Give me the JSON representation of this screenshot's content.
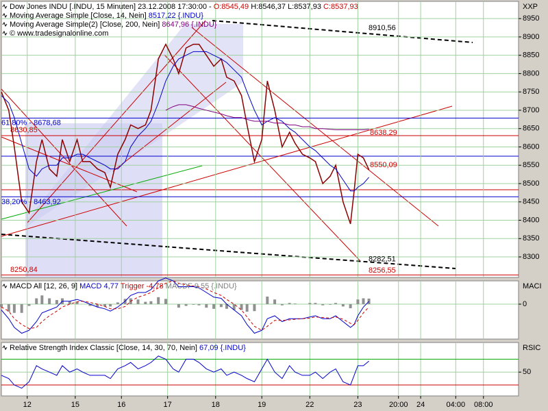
{
  "chart_data": [
    {
      "type": "line",
      "legend_texts": [
        [
          {
            "text": "Dow Jones INDU [.INDU, 15 Minuten] 23.12.2008 17:30:00 - ",
            "color": "#000000"
          },
          {
            "text": "O:8545,49",
            "color": "#cc0000"
          },
          {
            "text": " H:8546,37 L:8537,93 ",
            "color": "#000000"
          },
          {
            "text": "C:8537,93",
            "color": "#cc0000"
          }
        ],
        [
          {
            "text": "Moving Average Simple [Close, 14, Nein] ",
            "color": "#000000"
          },
          {
            "text": "8517,22 {.INDU}",
            "color": "#0000cc"
          }
        ],
        [
          {
            "text": "Moving Average Simple(2) [Close, 200, Nein] ",
            "color": "#000000"
          },
          {
            "text": "8647,96 {.INDU}",
            "color": "#800080"
          }
        ],
        [
          {
            "text": "© www.tradesignalonline.com",
            "color": "#000000"
          }
        ]
      ],
      "axis_label": "XXP",
      "xlim": [
        0,
        280
      ],
      "ylim": [
        8244,
        8997
      ],
      "yticks": [
        8300,
        8350,
        8400,
        8450,
        8500,
        8550,
        8600,
        8650,
        8700,
        8750,
        8800,
        8850,
        8900,
        8950
      ],
      "grid": true,
      "x": [
        0,
        4,
        7,
        11,
        15,
        19,
        22,
        26,
        30,
        33,
        37,
        41,
        44,
        48,
        52,
        56,
        59,
        63,
        67,
        70,
        74,
        78,
        81,
        85,
        89,
        93,
        96,
        100,
        104,
        107,
        111,
        115,
        119,
        122,
        126,
        130,
        133,
        137,
        141,
        144,
        148,
        152,
        156,
        159,
        163,
        167,
        170,
        174,
        178,
        181,
        185,
        189,
        191,
        193,
        196,
        199
      ],
      "series": [
        {
          "name": "Close",
          "color": "#8b0000",
          "kind": "line",
          "values": [
            8750,
            8700,
            8600,
            8450,
            8420,
            8560,
            8620,
            8540,
            8520,
            8620,
            8560,
            8620,
            8560,
            8560,
            8540,
            8530,
            8490,
            8580,
            8620,
            8660,
            8650,
            8660,
            8700,
            8840,
            8880,
            8840,
            8800,
            8870,
            8880,
            8880,
            8850,
            8820,
            8840,
            8790,
            8780,
            8740,
            8660,
            8560,
            8620,
            8780,
            8700,
            8600,
            8640,
            8610,
            8580,
            8570,
            8560,
            8500,
            8520,
            8550,
            8450,
            8390,
            8480,
            8580,
            8570,
            8537.93
          ]
        },
        {
          "name": "Moving Average Simple [Close, 14, Nein]",
          "color": "#0000cc",
          "kind": "line",
          "values": [
            8740,
            8720,
            8680,
            8610,
            8540,
            8520,
            8540,
            8550,
            8550,
            8570,
            8570,
            8580,
            8580,
            8570,
            8560,
            8550,
            8540,
            8540,
            8560,
            8600,
            8630,
            8650,
            8670,
            8720,
            8780,
            8820,
            8840,
            8850,
            8860,
            8860,
            8860,
            8850,
            8840,
            8830,
            8810,
            8790,
            8750,
            8700,
            8660,
            8670,
            8680,
            8670,
            8650,
            8640,
            8620,
            8600,
            8590,
            8570,
            8550,
            8540,
            8510,
            8480,
            8480,
            8490,
            8500,
            8517.22
          ]
        },
        {
          "name": "Moving Average Simple(2) [Close, 200, Nein]",
          "color": "#800080",
          "kind": "line",
          "values": [
            null,
            null,
            null,
            null,
            null,
            null,
            null,
            null,
            null,
            null,
            null,
            null,
            null,
            null,
            null,
            null,
            null,
            null,
            null,
            null,
            null,
            null,
            null,
            null,
            8700,
            8710,
            8715,
            8715,
            8710,
            8705,
            8700,
            8695,
            8690,
            8685,
            8680,
            8680,
            8675,
            8670,
            8670,
            8670,
            8665,
            8665,
            8660,
            8660,
            8655,
            8655,
            8650,
            8650,
            8648,
            8647,
            8647,
            8647,
            8647,
            8647,
            8647,
            8647.96
          ]
        }
      ],
      "annotations": [
        {
          "text": "8910,56",
          "value": 8910.56,
          "color": "#000000",
          "line": false
        },
        {
          "text": "8638,29",
          "value": 8638.29,
          "color": "#cc0000",
          "line": false
        },
        {
          "text": "8550,09",
          "value": 8550.09,
          "color": "#cc0000",
          "line": false
        },
        {
          "text": "8282,51",
          "value": 8282.51,
          "color": "#000000",
          "line": false
        },
        {
          "text": "8256,55",
          "value": 8256.55,
          "color": "#cc0000",
          "line": false
        },
        {
          "text": "8250,84",
          "value": 8250.84,
          "color": "#cc0000",
          "line": true
        },
        {
          "text": "8630,85",
          "value": 8630.85,
          "color": "#cc0000",
          "line": true
        },
        {
          "text": "61,80% - 8678,68",
          "value": 8678.68,
          "color": "#0000cc",
          "line": true
        },
        {
          "text": "38,20% - 8463,92",
          "value": 8463.92,
          "color": "#0000cc",
          "line": true
        }
      ]
    },
    {
      "type": "line",
      "legend_texts": [
        [
          {
            "text": "MACD All [12, 26, 9] ",
            "color": "#000000"
          },
          {
            "text": "MACD 4,77 ",
            "color": "#0000cc"
          },
          {
            "text": "Trigger -4,78 ",
            "color": "#cc0000"
          },
          {
            "text": "MACDF 9,55 {.INDU}",
            "color": "#808080"
          }
        ]
      ],
      "axis_label": "MACI",
      "xlim": [
        0,
        280
      ],
      "ylim": [
        -60,
        40
      ],
      "yticks": [
        0
      ],
      "grid": true,
      "x": [
        0,
        4,
        7,
        11,
        15,
        19,
        22,
        26,
        30,
        33,
        37,
        41,
        44,
        48,
        52,
        56,
        59,
        63,
        67,
        70,
        74,
        78,
        81,
        85,
        89,
        93,
        96,
        100,
        104,
        107,
        111,
        115,
        119,
        122,
        126,
        130,
        133,
        137,
        141,
        144,
        148,
        152,
        156,
        159,
        163,
        167,
        170,
        174,
        178,
        181,
        185,
        189,
        191,
        193,
        196,
        199
      ],
      "series": [
        {
          "name": "MACDF",
          "color": "#909090",
          "kind": "bar",
          "values": [
            -5,
            -13,
            -15,
            -15,
            -3,
            10,
            15,
            10,
            7,
            10,
            5,
            4,
            0,
            -3,
            -5,
            -4,
            -4,
            3,
            9,
            10,
            8,
            4,
            5,
            12,
            9,
            0,
            -6,
            -3,
            -1,
            -2,
            -6,
            -8,
            -5,
            -8,
            -10,
            -10,
            -13,
            -12,
            0,
            13,
            8,
            -2,
            2,
            1,
            0,
            2,
            2,
            -2,
            -1,
            2,
            -4,
            -7,
            0,
            8,
            10,
            9.55
          ]
        },
        {
          "name": "MACD",
          "color": "#0000cc",
          "kind": "line",
          "values": [
            -10,
            -25,
            -40,
            -50,
            -45,
            -30,
            -15,
            -10,
            -5,
            5,
            5,
            8,
            5,
            0,
            -5,
            -8,
            -12,
            -5,
            5,
            15,
            20,
            20,
            25,
            40,
            45,
            40,
            30,
            30,
            30,
            28,
            20,
            12,
            10,
            0,
            -10,
            -20,
            -35,
            -50,
            -45,
            -25,
            -20,
            -30,
            -25,
            -25,
            -25,
            -22,
            -20,
            -25,
            -25,
            -20,
            -30,
            -40,
            -35,
            -20,
            -5,
            4.77
          ]
        },
        {
          "name": "Trigger",
          "color": "#cc0000",
          "kind": "dashed",
          "values": [
            -5,
            -12,
            -25,
            -35,
            -42,
            -40,
            -30,
            -20,
            -12,
            -5,
            0,
            4,
            5,
            3,
            0,
            -4,
            -8,
            -8,
            -4,
            5,
            12,
            16,
            20,
            28,
            36,
            40,
            36,
            33,
            31,
            30,
            26,
            20,
            15,
            8,
            0,
            -10,
            -22,
            -38,
            -45,
            -38,
            -28,
            -28,
            -27,
            -26,
            -25,
            -24,
            -22,
            -23,
            -24,
            -22,
            -26,
            -33,
            -35,
            -28,
            -15,
            -4.78
          ]
        }
      ]
    },
    {
      "type": "line",
      "legend_texts": [
        [
          {
            "text": "Relative Strength Index Classic [Close, 14, 30, 70, Nein] ",
            "color": "#000000"
          },
          {
            "text": "67,09 {.INDU}",
            "color": "#0000cc"
          }
        ]
      ],
      "axis_label": "RSIC",
      "xlim": [
        0,
        280
      ],
      "ylim": [
        13,
        96
      ],
      "yticks": [
        50
      ],
      "levels": [
        {
          "value": 70,
          "color": "#00aa00"
        },
        {
          "value": 30,
          "color": "#cc0000"
        }
      ],
      "grid": true,
      "xticks": [
        {
          "value": 14,
          "label": "12"
        },
        {
          "value": 40,
          "label": "15"
        },
        {
          "value": 65,
          "label": "16"
        },
        {
          "value": 90,
          "label": "17"
        },
        {
          "value": 116,
          "label": "18"
        },
        {
          "value": 141,
          "label": "19"
        },
        {
          "value": 167,
          "label": "22"
        },
        {
          "value": 193,
          "label": "23"
        },
        {
          "value": 215,
          "label": "20:00"
        },
        {
          "value": 227,
          "label": "24"
        },
        {
          "value": 246,
          "label": "04:00"
        },
        {
          "value": 261,
          "label": "08:00"
        }
      ],
      "x": [
        0,
        4,
        7,
        11,
        15,
        19,
        22,
        26,
        30,
        33,
        37,
        41,
        44,
        48,
        52,
        56,
        59,
        63,
        67,
        70,
        74,
        78,
        81,
        85,
        89,
        93,
        96,
        100,
        104,
        107,
        111,
        115,
        119,
        122,
        126,
        130,
        133,
        137,
        141,
        144,
        148,
        152,
        156,
        159,
        163,
        167,
        170,
        174,
        178,
        181,
        185,
        189,
        191,
        193,
        196,
        199
      ],
      "series": [
        {
          "name": "RSI",
          "color": "#0000cc",
          "kind": "line",
          "values": [
            45,
            40,
            30,
            25,
            35,
            60,
            55,
            50,
            45,
            60,
            50,
            55,
            50,
            45,
            45,
            45,
            40,
            55,
            60,
            65,
            55,
            60,
            65,
            75,
            70,
            55,
            50,
            70,
            70,
            65,
            55,
            50,
            55,
            45,
            50,
            45,
            40,
            35,
            55,
            70,
            50,
            40,
            60,
            50,
            45,
            45,
            50,
            40,
            50,
            55,
            35,
            30,
            45,
            60,
            60,
            67.09
          ]
        }
      ]
    }
  ]
}
